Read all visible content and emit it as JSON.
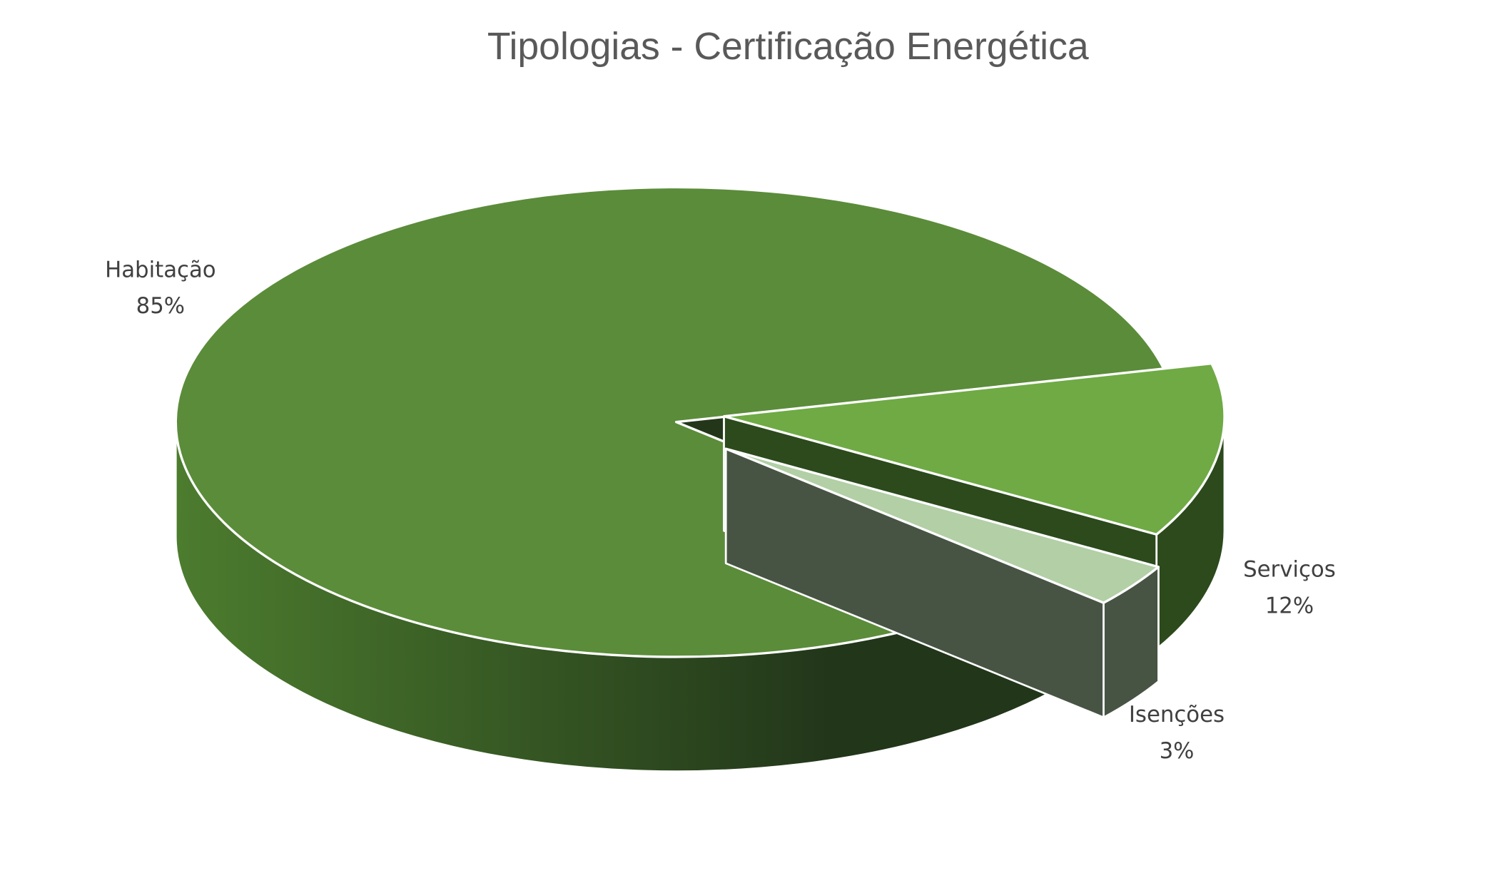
{
  "chart_data": {
    "type": "pie",
    "style": "3d-exploded",
    "title": "Tipologias - Certificação Energética",
    "slices": [
      {
        "label": "Habitação",
        "value": 85,
        "value_label": "85%",
        "color": "#5b8c3a",
        "side_color_light": "#4c7c2e",
        "side_color_dark": "#22361a",
        "exploded": false
      },
      {
        "label": "Serviços",
        "value": 12,
        "value_label": "12%",
        "color": "#6faa45",
        "side_color_light": "#2c4a1c",
        "side_color_dark": "#2c4a1c",
        "exploded": true
      },
      {
        "label": "Isenções",
        "value": 3,
        "value_label": "3%",
        "color": "#b2cfa6",
        "side_color_light": "#475444",
        "side_color_dark": "#475444",
        "exploded": true
      }
    ],
    "legend": "none",
    "data_labels": "outside, category name and percentage"
  }
}
